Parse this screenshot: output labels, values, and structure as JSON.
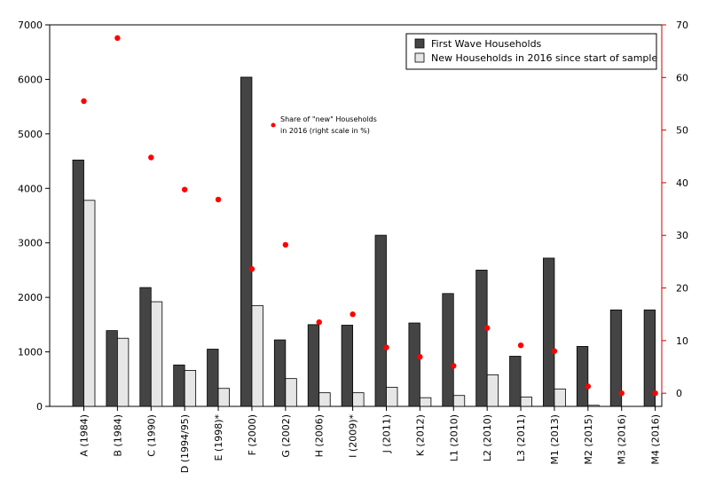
{
  "chart_data": {
    "type": "bar",
    "categories": [
      "A (1984)",
      "B (1984)",
      "C (1990)",
      "D (1994/95)",
      "E (1998)*",
      "F (2000)",
      "G (2002)",
      "H (2006)",
      "I (2009)*",
      "J (2011)",
      "K (2012)",
      "L1 (2010)",
      "L2 (2010)",
      "L3 (2011)",
      "M1 (2013)",
      "M2 (2015)",
      "M3 (2016)",
      "M4 (2016)"
    ],
    "series": [
      {
        "name": "First Wave Households",
        "color": "#444444",
        "axis": "left",
        "values": [
          4520,
          1390,
          2180,
          760,
          1050,
          6040,
          1220,
          1500,
          1490,
          3140,
          1530,
          2070,
          2500,
          920,
          2720,
          1100,
          1770,
          1770
        ]
      },
      {
        "name": "New Households in 2016 since start of sample",
        "color": "#e6e6e6",
        "axis": "left",
        "values": [
          3780,
          1250,
          1920,
          660,
          330,
          1850,
          510,
          250,
          250,
          350,
          160,
          200,
          580,
          170,
          320,
          20,
          0,
          0
        ]
      },
      {
        "name": "Share of \"new\" Households in 2016 (right scale in %)",
        "color": "#ff0000",
        "axis": "right",
        "type": "scatter",
        "values": [
          55.5,
          67.5,
          44.8,
          38.7,
          36.8,
          23.6,
          28.2,
          13.5,
          15.0,
          8.7,
          6.9,
          5.2,
          12.4,
          9.1,
          8.0,
          1.3,
          0,
          0
        ]
      }
    ],
    "ylim_left": [
      0,
      7000
    ],
    "yticks_left": [
      "0",
      "1000",
      "2000",
      "3000",
      "4000",
      "5000",
      "6000",
      "7000"
    ],
    "ylim_right": [
      -2.5,
      70
    ],
    "yticks_right": [
      "0",
      "10",
      "20",
      "30",
      "40",
      "50",
      "60",
      "70"
    ],
    "right_axis_color": "#cc0000",
    "legend": {
      "placement": "top-right",
      "entries": [
        "First Wave Households",
        "New Households in 2016 since start of sample"
      ]
    },
    "annotation": {
      "line1": "Share of \"new\" Households",
      "line2": "in 2016 (right scale in %)"
    },
    "grid": false
  }
}
